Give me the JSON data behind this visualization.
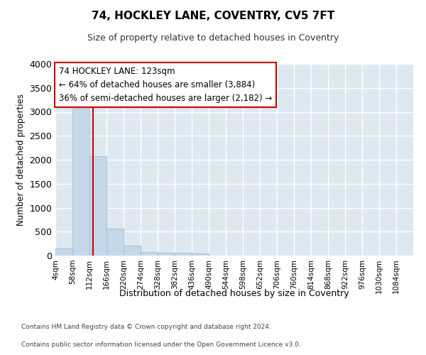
{
  "title1": "74, HOCKLEY LANE, COVENTRY, CV5 7FT",
  "title2": "Size of property relative to detached houses in Coventry",
  "xlabel": "Distribution of detached houses by size in Coventry",
  "ylabel": "Number of detached properties",
  "bins": [
    "4sqm",
    "58sqm",
    "112sqm",
    "166sqm",
    "220sqm",
    "274sqm",
    "328sqm",
    "382sqm",
    "436sqm",
    "490sqm",
    "544sqm",
    "598sqm",
    "652sqm",
    "706sqm",
    "760sqm",
    "814sqm",
    "868sqm",
    "922sqm",
    "976sqm",
    "1030sqm",
    "1084sqm"
  ],
  "bin_edges": [
    4,
    58,
    112,
    166,
    220,
    274,
    328,
    382,
    436,
    490,
    544,
    598,
    652,
    706,
    760,
    814,
    868,
    922,
    976,
    1030,
    1084
  ],
  "bar_values": [
    150,
    3060,
    2070,
    570,
    210,
    80,
    62,
    52,
    45,
    0,
    0,
    0,
    0,
    0,
    0,
    0,
    0,
    0,
    0,
    0,
    0
  ],
  "bar_color": "#c5d8ea",
  "bar_edge_color": "#a0bdd0",
  "property_size": 123,
  "property_line_color": "#cc0000",
  "annotation_line1": "74 HOCKLEY LANE: 123sqm",
  "annotation_line2": "← 64% of detached houses are smaller (3,884)",
  "annotation_line3": "36% of semi-detached houses are larger (2,182) →",
  "annotation_box_color": "#cc0000",
  "ylim": [
    0,
    4000
  ],
  "yticks": [
    0,
    500,
    1000,
    1500,
    2000,
    2500,
    3000,
    3500,
    4000
  ],
  "footer1": "Contains HM Land Registry data © Crown copyright and database right 2024.",
  "footer2": "Contains public sector information licensed under the Open Government Licence v3.0.",
  "bg_color": "#ffffff",
  "plot_bg_color": "#dde8f0",
  "grid_color": "#ffffff"
}
